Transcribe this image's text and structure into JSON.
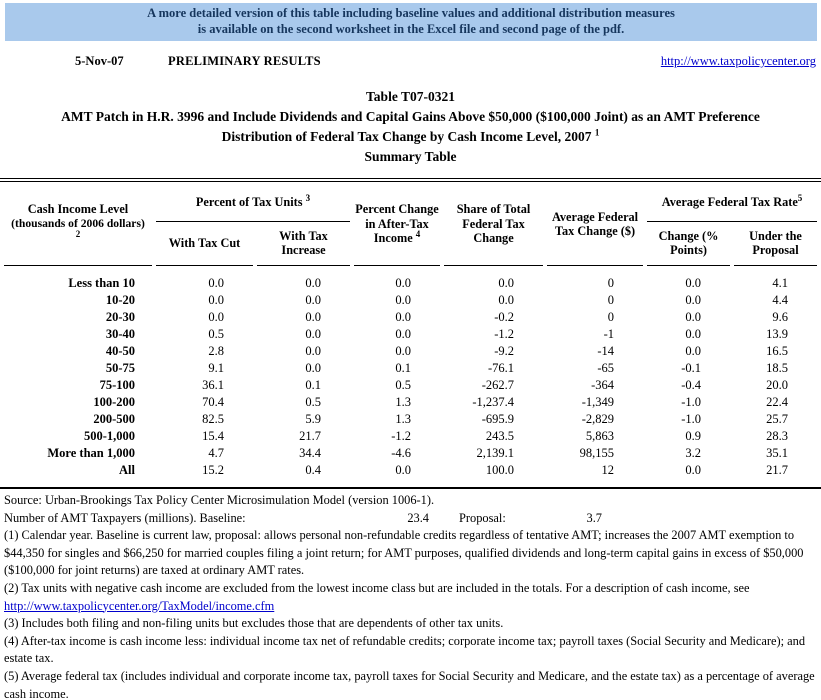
{
  "banner": {
    "line1": "A more detailed version of this table including baseline values and additional distribution measures",
    "line2": "is available on the second worksheet in the Excel file and second page of the pdf.",
    "bg_color": "#A9C9EC",
    "text_color": "#16365D"
  },
  "masthead": {
    "date": "5-Nov-07",
    "status": "PRELIMINARY RESULTS",
    "url": "http://www.taxpolicycenter.org"
  },
  "title": {
    "table_number": "Table T07-0321",
    "line2": "AMT Patch in H.R. 3996 and Include Dividends and Capital Gains Above $50,000 ($100,000 Joint) as an AMT Preference",
    "line3": "Distribution of Federal Tax Change by Cash Income Level, 2007",
    "line3_sup": "1",
    "line4": "Summary Table"
  },
  "table": {
    "columns": {
      "cash_income": {
        "line1": "Cash Income Level",
        "line2": "(thousands of 2006 dollars)",
        "sup": "2"
      },
      "pct_tax_units": {
        "label": "Percent of Tax Units",
        "sup": "3"
      },
      "with_tax_cut": "With Tax Cut",
      "with_tax_increase": "With Tax Increase",
      "pct_change_ati": {
        "label": "Percent Change in After-Tax Income",
        "sup": "4"
      },
      "share_total": "Share of Total Federal Tax Change",
      "avg_change": "Average Federal Tax Change ($)",
      "avg_rate": {
        "label": "Average Federal Tax Rate",
        "sup": "5"
      },
      "rate_change": "Change (% Points)",
      "under_proposal": "Under the Proposal"
    },
    "rows": [
      {
        "label": "Less than 10",
        "values": [
          "0.0",
          "0.0",
          "0.0",
          "0.0",
          "0",
          "0.0",
          "4.1"
        ]
      },
      {
        "label": "10-20",
        "values": [
          "0.0",
          "0.0",
          "0.0",
          "0.0",
          "0",
          "0.0",
          "4.4"
        ]
      },
      {
        "label": "20-30",
        "values": [
          "0.0",
          "0.0",
          "0.0",
          "-0.2",
          "0",
          "0.0",
          "9.6"
        ]
      },
      {
        "label": "30-40",
        "values": [
          "0.5",
          "0.0",
          "0.0",
          "-1.2",
          "-1",
          "0.0",
          "13.9"
        ]
      },
      {
        "label": "40-50",
        "values": [
          "2.8",
          "0.0",
          "0.0",
          "-9.2",
          "-14",
          "0.0",
          "16.5"
        ]
      },
      {
        "label": "50-75",
        "values": [
          "9.1",
          "0.0",
          "0.1",
          "-76.1",
          "-65",
          "-0.1",
          "18.5"
        ]
      },
      {
        "label": "75-100",
        "values": [
          "36.1",
          "0.1",
          "0.5",
          "-262.7",
          "-364",
          "-0.4",
          "20.0"
        ]
      },
      {
        "label": "100-200",
        "values": [
          "70.4",
          "0.5",
          "1.3",
          "-1,237.4",
          "-1,349",
          "-1.0",
          "22.4"
        ]
      },
      {
        "label": "200-500",
        "values": [
          "82.5",
          "5.9",
          "1.3",
          "-695.9",
          "-2,829",
          "-1.0",
          "25.7"
        ]
      },
      {
        "label": "500-1,000",
        "values": [
          "15.4",
          "21.7",
          "-1.2",
          "243.5",
          "5,863",
          "0.9",
          "28.3"
        ]
      },
      {
        "label": "More than 1,000",
        "values": [
          "4.7",
          "34.4",
          "-4.6",
          "2,139.1",
          "98,155",
          "3.2",
          "35.1"
        ]
      },
      {
        "label": "All",
        "values": [
          "15.2",
          "0.4",
          "0.0",
          "100.0",
          "12",
          "0.0",
          "21.7"
        ]
      }
    ]
  },
  "footer": {
    "source": "Source: Urban-Brookings Tax Policy Center Microsimulation Model (version 1006-1).",
    "amt_label": "Number of AMT Taxpayers (millions).  Baseline:",
    "amt_baseline": "23.4",
    "amt_proposal_label": "Proposal:",
    "amt_proposal": "3.7",
    "note1": "(1) Calendar year. Baseline is current law, proposal: allows personal non-refundable credits regardless of tentative AMT; increases the 2007 AMT exemption to $44,350 for singles and $66,250 for married couples filing a joint return; for AMT purposes, qualified dividends and long-term capital gains in excess of $50,000 ($100,000 for joint returns) are taxed at ordinary AMT rates.",
    "note2_text": "(2) Tax units with negative cash income are excluded from the lowest income class but are included in the totals. For a description of cash income, see",
    "note2_link": "http://www.taxpolicycenter.org/TaxModel/income.cfm",
    "note3": "(3) Includes both filing and non-filing units but excludes those that are dependents of other tax units.",
    "note4": "(4) After-tax income is cash income less: individual income tax net of refundable credits; corporate income tax; payroll taxes (Social Security and Medicare); and estate tax.",
    "note5": "(5) Average federal tax (includes individual and corporate income tax, payroll taxes for Social Security and Medicare, and the estate tax) as a percentage of average cash income."
  }
}
